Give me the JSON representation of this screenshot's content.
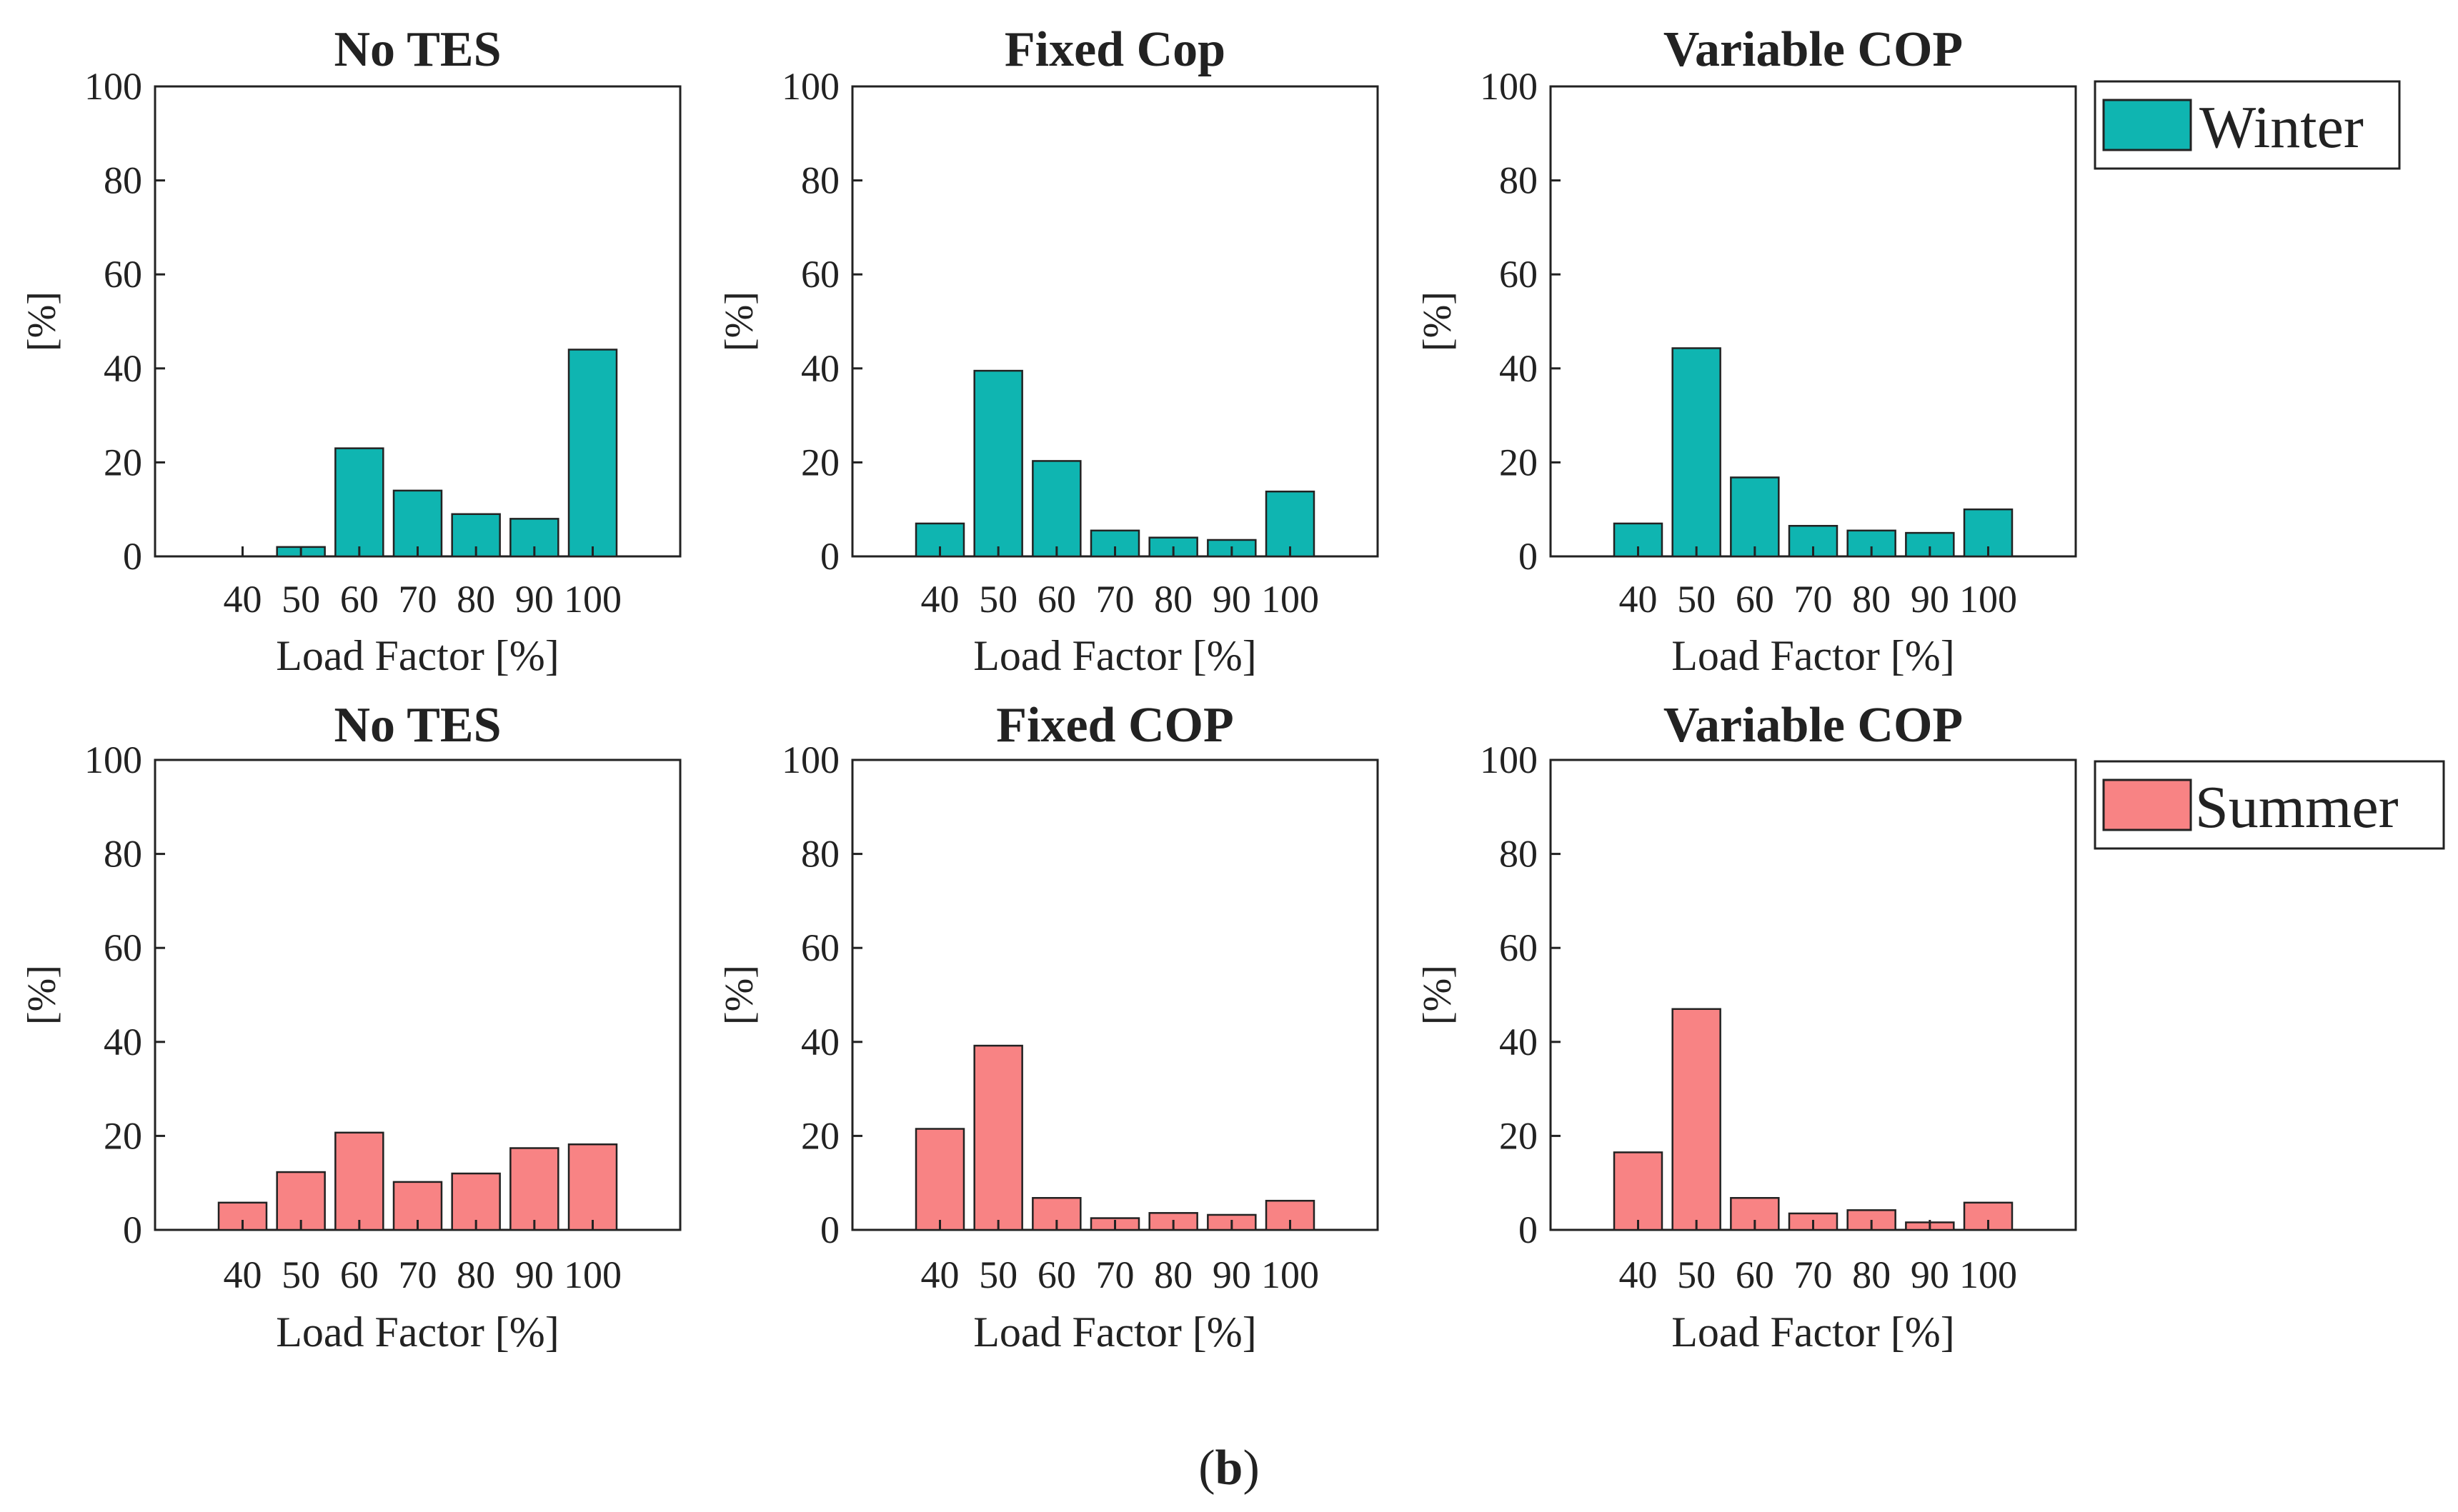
{
  "caption": {
    "open": "(",
    "letter": "b",
    "close": ")"
  },
  "colors": {
    "winter": "#0fb5b1",
    "summer": "#f88384",
    "axis": "#222222"
  },
  "legends": {
    "winter": "Winter",
    "summer": "Summer"
  },
  "chart_data": [
    {
      "type": "bar",
      "title": "No TES",
      "season": "winter",
      "categories": [
        "40",
        "50",
        "60",
        "70",
        "80",
        "90",
        "100"
      ],
      "values": [
        0,
        2,
        23,
        14,
        9,
        8,
        44
      ],
      "xlabel": "Load Factor [%]",
      "ylabel": "[%]",
      "ylim": [
        0,
        100
      ],
      "yticks": [
        "0",
        "20",
        "40",
        "60",
        "80",
        "100"
      ]
    },
    {
      "type": "bar",
      "title": "Fixed Cop",
      "season": "winter",
      "categories": [
        "40",
        "50",
        "60",
        "70",
        "80",
        "90",
        "100"
      ],
      "values": [
        7,
        39.5,
        20.3,
        5.5,
        4,
        3.5,
        13.8
      ],
      "xlabel": "Load Factor [%]",
      "ylabel": "[%]",
      "ylim": [
        0,
        100
      ],
      "yticks": [
        "0",
        "20",
        "40",
        "60",
        "80",
        "100"
      ]
    },
    {
      "type": "bar",
      "title": "Variable COP",
      "season": "winter",
      "categories": [
        "40",
        "50",
        "60",
        "70",
        "80",
        "90",
        "100"
      ],
      "values": [
        7,
        44.3,
        16.8,
        6.5,
        5.5,
        5,
        10
      ],
      "xlabel": "Load Factor [%]",
      "ylabel": "[%]",
      "ylim": [
        0,
        100
      ],
      "yticks": [
        "0",
        "20",
        "40",
        "60",
        "80",
        "100"
      ]
    },
    {
      "type": "bar",
      "title": "No TES",
      "season": "summer",
      "categories": [
        "40",
        "50",
        "60",
        "70",
        "80",
        "90",
        "100"
      ],
      "values": [
        5.8,
        12.3,
        20.7,
        10.2,
        12,
        17.4,
        18.2
      ],
      "xlabel": "Load Factor [%]",
      "ylabel": "[%]",
      "ylim": [
        0,
        100
      ],
      "yticks": [
        "0",
        "20",
        "40",
        "60",
        "80",
        "100"
      ]
    },
    {
      "type": "bar",
      "title": "Fixed COP",
      "season": "summer",
      "categories": [
        "40",
        "50",
        "60",
        "70",
        "80",
        "90",
        "100"
      ],
      "values": [
        21.5,
        39.2,
        6.8,
        2.5,
        3.6,
        3.2,
        6.2
      ],
      "xlabel": "Load Factor [%]",
      "ylabel": "[%]",
      "ylim": [
        0,
        100
      ],
      "yticks": [
        "0",
        "20",
        "40",
        "60",
        "80",
        "100"
      ]
    },
    {
      "type": "bar",
      "title": "Variable COP",
      "season": "summer",
      "categories": [
        "40",
        "50",
        "60",
        "70",
        "80",
        "90",
        "100"
      ],
      "values": [
        16.5,
        47,
        6.8,
        3.5,
        4.2,
        1.6,
        5.8
      ],
      "xlabel": "Load Factor [%]",
      "ylabel": "[%]",
      "ylim": [
        0,
        100
      ],
      "yticks": [
        "0",
        "20",
        "40",
        "60",
        "80",
        "100"
      ]
    }
  ]
}
